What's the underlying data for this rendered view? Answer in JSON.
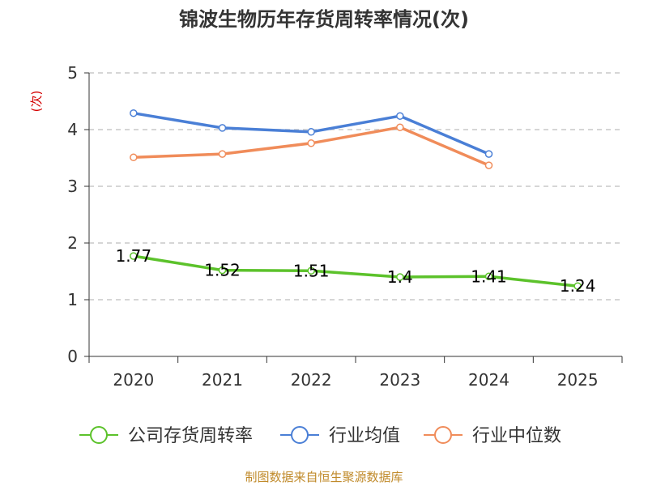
{
  "chart_data": {
    "type": "line",
    "title": "锦波生物历年存货周转率情况(次)",
    "ylabel": "(次)",
    "categories": [
      "2020",
      "2021",
      "2022",
      "2023",
      "2024",
      "2025"
    ],
    "ylim": [
      0,
      5
    ],
    "yticks": [
      0,
      1,
      2,
      3,
      4,
      5
    ],
    "grid": true,
    "legend_position": "bottom",
    "series": [
      {
        "name": "公司存货周转率",
        "color": "#5cc22b",
        "values": [
          1.77,
          1.52,
          1.51,
          1.4,
          1.41,
          1.24
        ],
        "labels": [
          "1.77",
          "1.52",
          "1.51",
          "1.4",
          "1.41",
          "1.24"
        ]
      },
      {
        "name": "行业均值",
        "color": "#4a7fd6",
        "values": [
          4.29,
          4.03,
          3.96,
          4.24,
          3.57,
          null
        ]
      },
      {
        "name": "行业中位数",
        "color": "#f08c5a",
        "values": [
          3.51,
          3.57,
          3.76,
          4.04,
          3.37,
          null
        ]
      }
    ]
  },
  "source_text": "制图数据来自恒生聚源数据库"
}
